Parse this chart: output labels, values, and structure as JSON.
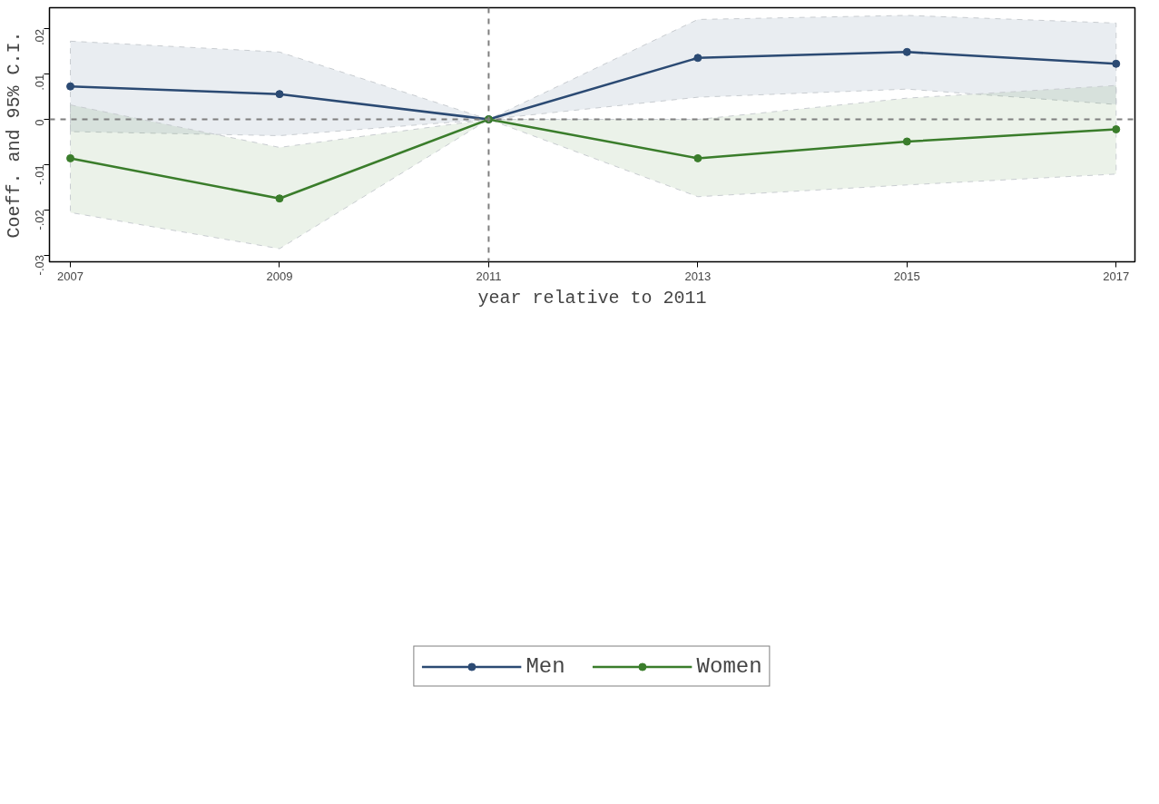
{
  "chart_data": {
    "type": "line",
    "xlabel": "year relative to 2011",
    "ylabel": "Coeff. and 95% C.I.",
    "x": [
      2007,
      2009,
      2011,
      2013,
      2015,
      2017
    ],
    "series": [
      {
        "name": "Men",
        "color": "#2b4a73",
        "values": [
          0.0073,
          0.0056,
          0,
          0.0136,
          0.0149,
          0.0123
        ],
        "lower": [
          -0.0027,
          -0.0036,
          0,
          0.0049,
          0.0067,
          0.0033
        ],
        "upper": [
          0.0173,
          0.0149,
          0,
          0.0221,
          0.023,
          0.0213
        ]
      },
      {
        "name": "Women",
        "color": "#3a7d2b",
        "values": [
          -0.0086,
          -0.0175,
          0,
          -0.0086,
          -0.0049,
          -0.0022
        ],
        "lower": [
          -0.0206,
          -0.0286,
          0,
          -0.0171,
          -0.0145,
          -0.0121
        ],
        "upper": [
          0.0032,
          -0.0062,
          0,
          0.0,
          0.0047,
          0.0075
        ]
      }
    ],
    "xlim": [
      2006.8,
      2017.18
    ],
    "ylim": [
      -0.0315,
      0.0247
    ],
    "xticks": [
      2007,
      2009,
      2011,
      2013,
      2015,
      2017
    ],
    "yticks": [
      {
        "value": -0.03,
        "label": "-.03"
      },
      {
        "value": -0.02,
        "label": "-.02"
      },
      {
        "value": -0.01,
        "label": "-.01"
      },
      {
        "value": 0,
        "label": "0"
      },
      {
        "value": 0.01,
        "label": ".01"
      },
      {
        "value": 0.02,
        "label": ".02"
      }
    ],
    "ref_lines": [
      {
        "axis": "x",
        "value": 2011,
        "color": "#7f7f7f",
        "line_style": "dashed"
      },
      {
        "axis": "y",
        "value": 0,
        "color": "#7f7f7f",
        "line_style": "dashed"
      }
    ],
    "grid": false,
    "legend": "bottom",
    "marker": "circle",
    "line_style": "solid"
  }
}
